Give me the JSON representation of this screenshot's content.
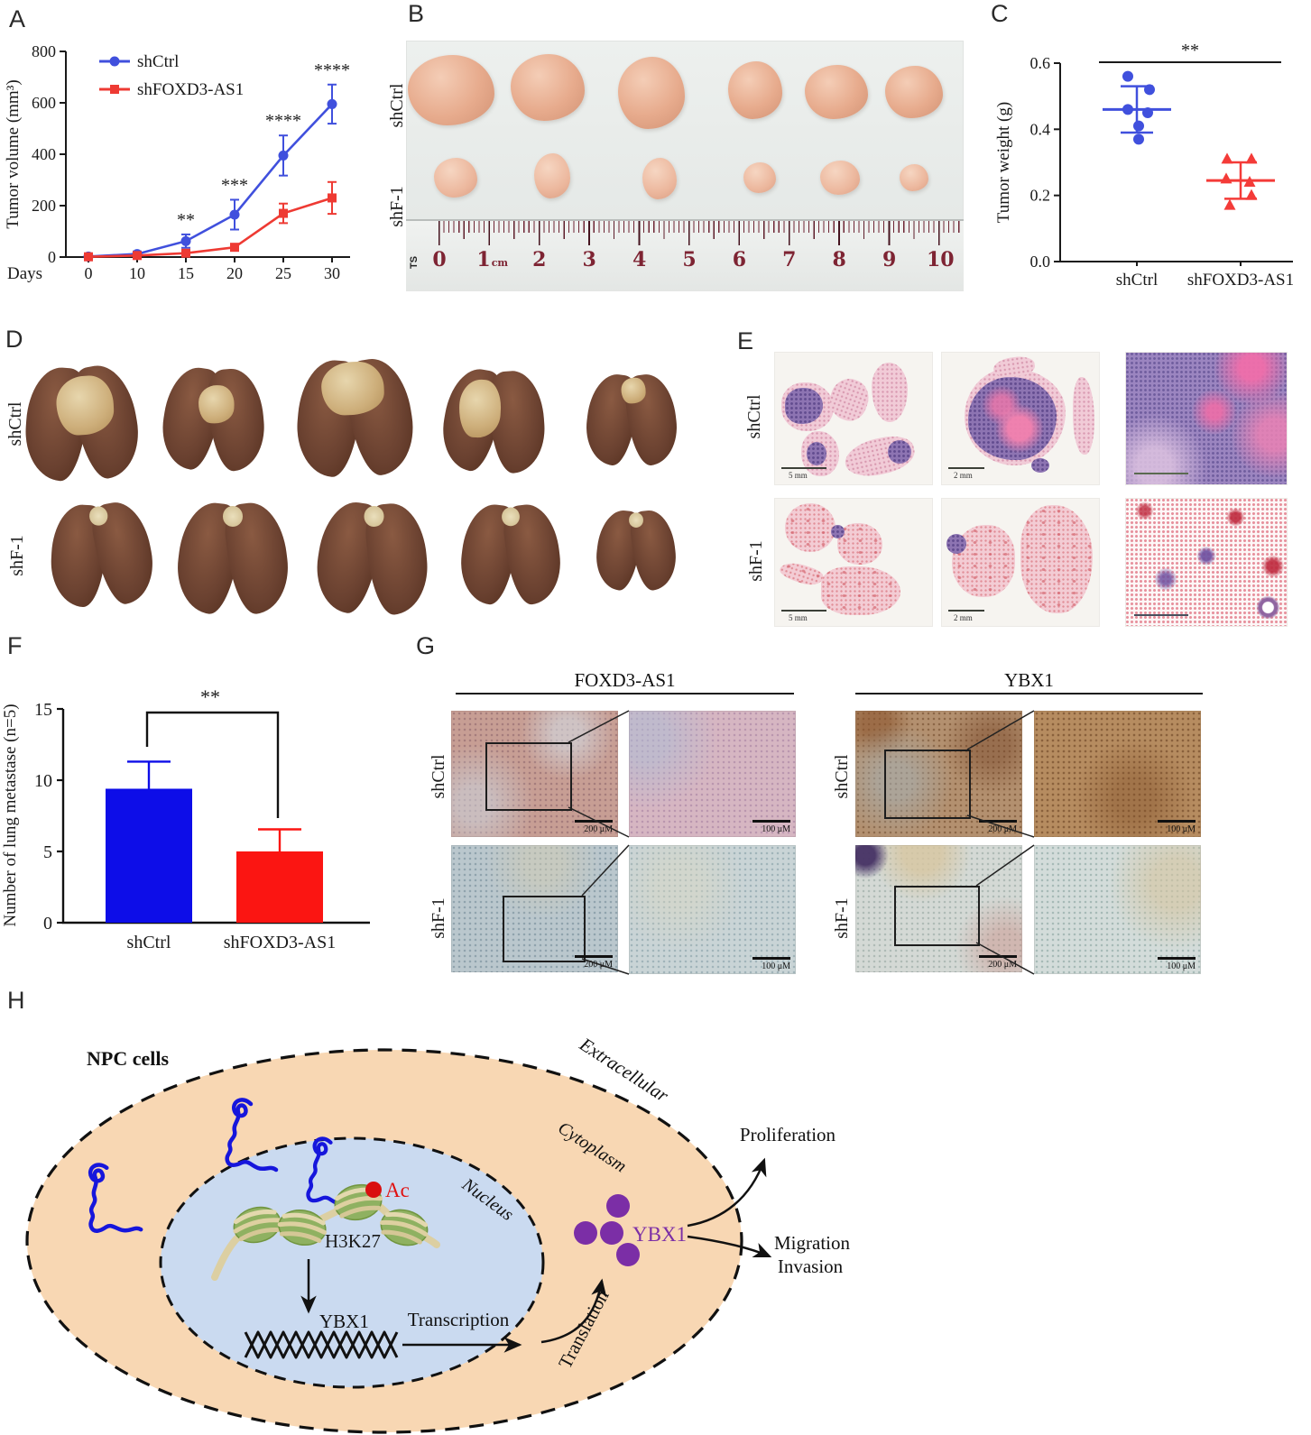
{
  "figure": {
    "panel_labels": [
      "A",
      "B",
      "C",
      "D",
      "E",
      "F",
      "G",
      "H"
    ]
  },
  "groups": {
    "control": "shCtrl",
    "sh_full": "shFOXD3-AS1",
    "sh_short": "shF-1"
  },
  "chart_data": [
    {
      "id": "tumor_volume_over_time",
      "type": "line",
      "xlabel": "Days",
      "ylabel": "Tumor volume (mm³)",
      "x_ticks": [
        "0",
        "10",
        "15",
        "20",
        "25",
        "30"
      ],
      "ylim": [
        0,
        800
      ],
      "yticks": [
        0,
        200,
        400,
        600,
        800
      ],
      "series": [
        {
          "name": "shCtrl",
          "color": "#4050dd",
          "marker": "circle",
          "values": [
            2,
            12,
            62,
            165,
            395,
            595
          ],
          "errors": [
            5,
            10,
            26,
            58,
            78,
            76
          ]
        },
        {
          "name": "shFOXD3-AS1",
          "color": "#ee3a33",
          "marker": "square",
          "values": [
            1,
            6,
            15,
            38,
            170,
            230
          ],
          "errors": [
            3,
            5,
            10,
            12,
            38,
            62
          ]
        }
      ],
      "significance": [
        {
          "x_index": 2,
          "label": "**"
        },
        {
          "x_index": 3,
          "label": "***"
        },
        {
          "x_index": 4,
          "label": "****"
        },
        {
          "x_index": 5,
          "label": "****"
        }
      ]
    },
    {
      "id": "tumor_weight",
      "type": "scatter",
      "ylabel": "Tumor weight (g)",
      "ylim": [
        0,
        0.6
      ],
      "yticks": [
        0.0,
        0.2,
        0.4,
        0.6
      ],
      "significance": "**",
      "groups": [
        {
          "name": "shCtrl",
          "color": "#4050dd",
          "marker": "circle",
          "points": [
            0.56,
            0.52,
            0.46,
            0.45,
            0.41,
            0.37
          ],
          "mean": 0.46,
          "upper": 0.53,
          "lower": 0.39
        },
        {
          "name": "shFOXD3-AS1",
          "color": "#f43b38",
          "marker": "triangle",
          "points": [
            0.31,
            0.31,
            0.25,
            0.24,
            0.2,
            0.17
          ],
          "mean": 0.245,
          "upper": 0.3,
          "lower": 0.19
        }
      ]
    },
    {
      "id": "lung_metastasis_count",
      "type": "bar",
      "ylabel": "Number of lung metastase (n=5)",
      "ylim": [
        0,
        15
      ],
      "yticks": [
        0,
        5,
        10,
        15
      ],
      "categories": [
        "shCtrl",
        "shFOXD3-AS1"
      ],
      "values": [
        9.4,
        5.0
      ],
      "errors": [
        1.9,
        1.55
      ],
      "colors": [
        "#0d0de8",
        "#fb1512"
      ],
      "significance": "**"
    }
  ],
  "panels": {
    "b": {
      "ruler": {
        "numbers": [
          "0",
          "1",
          "2",
          "3",
          "4",
          "5",
          "6",
          "7",
          "8",
          "9",
          "10"
        ],
        "unit": "cm",
        "brand": "TS"
      }
    },
    "e": {
      "scale_bars": {
        "col1": "5 mm",
        "col2": "2 mm"
      }
    },
    "g": {
      "titles": [
        "FOXD3-AS1",
        "YBX1"
      ],
      "scale_bar_left": "200 μM",
      "scale_bar_right": "100 μM"
    },
    "h": {
      "npc_cells": "NPC cells",
      "extracellular": "Extracellular",
      "cytoplasm": "Cytoplasm",
      "nucleus": "Nucleus",
      "h3k27": "H3K27",
      "ac": "Ac",
      "ybx1_gene": "YBX1",
      "transcription": "Transcription",
      "translation": "Translation",
      "ybx1_protein": "YBX1",
      "proliferation": "Proliferation",
      "migration": "Migration",
      "invasion": "Invasion"
    }
  }
}
